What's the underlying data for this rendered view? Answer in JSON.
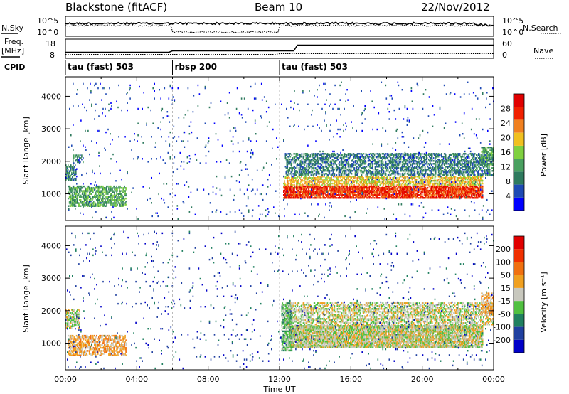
{
  "header": {
    "title": "Blackstone (fitACF)",
    "beam": "Beam 10",
    "date": "22/Nov/2012"
  },
  "summary_panel": {
    "nsky_label": "N.Sky",
    "nsearch_label": "N.Search",
    "nsky_ticks": [
      "10^5",
      "10^0"
    ],
    "nsearch_ticks": [
      "10^5",
      "10^0"
    ],
    "freq_label_1": "Freq.",
    "freq_label_2": "[MHz]",
    "freq_ticks": [
      "18",
      "8"
    ],
    "nave_label": "Nave",
    "nave_ticks": [
      "60",
      "0"
    ],
    "cpid_label": "CPID",
    "cpid_segments": [
      {
        "label": "tau (fast) 503",
        "start_hour": 0,
        "end_hour": 6
      },
      {
        "label": "rbsp 200",
        "start_hour": 6,
        "end_hour": 12
      },
      {
        "label": "tau (fast) 503",
        "start_hour": 12,
        "end_hour": 24
      }
    ]
  },
  "colors": {
    "power": [
      "#0000ff",
      "#1e4ab4",
      "#2e7a5e",
      "#4aa060",
      "#7fd040",
      "#f0c020",
      "#f08020",
      "#f02000",
      "#e00000"
    ],
    "velocity": [
      "#0000c8",
      "#2040a0",
      "#208060",
      "#50c040",
      "#c8c8be",
      "#f0a020",
      "#f07010",
      "#f03000",
      "#e00000"
    ]
  },
  "chart_data": [
    {
      "type": "heatmap",
      "name": "power",
      "xlabel": "",
      "ylabel": "Slant Range [km]",
      "xlim": [
        0,
        24
      ],
      "ylim": [
        180,
        4600
      ],
      "yticks": [
        1000,
        2000,
        3000,
        4000
      ],
      "colorbar_label": "Power [dB]",
      "colorbar_range": [
        0,
        32
      ],
      "colorbar_ticks": [
        "28",
        "24",
        "20",
        "16",
        "12",
        "8",
        "4"
      ],
      "blobs": [
        {
          "h0": 0.15,
          "h1": 3.4,
          "r0": 650,
          "r1": 1300,
          "level": 3,
          "density": 0.55
        },
        {
          "h0": 0.0,
          "h1": 0.6,
          "r0": 1450,
          "r1": 1950,
          "level": 2,
          "density": 0.55
        },
        {
          "h0": 0.4,
          "h1": 1.0,
          "r0": 2000,
          "r1": 2250,
          "level": 2,
          "density": 0.4
        },
        {
          "h0": 12.2,
          "h1": 23.4,
          "r0": 900,
          "r1": 1300,
          "level": 7,
          "density": 0.75
        },
        {
          "h0": 12.2,
          "h1": 23.4,
          "r0": 1300,
          "r1": 1600,
          "level": 5,
          "density": 0.5
        },
        {
          "h0": 12.3,
          "h1": 24.0,
          "r0": 1600,
          "r1": 2300,
          "level": 2,
          "density": 0.45
        },
        {
          "h0": 23.3,
          "h1": 24.0,
          "r0": 1900,
          "r1": 2500,
          "level": 3,
          "density": 0.5
        },
        {
          "h0": 0.0,
          "h1": 24.0,
          "r0": 250,
          "r1": 4500,
          "level": 1,
          "density": 0.015
        }
      ]
    },
    {
      "type": "heatmap",
      "name": "velocity",
      "xlabel": "Time UT",
      "ylabel": "Slant Range [km]",
      "xlim": [
        0,
        24
      ],
      "ylim": [
        180,
        4600
      ],
      "xticks": [
        "00:00",
        "04:00",
        "08:00",
        "12:00",
        "16:00",
        "20:00",
        "00:00"
      ],
      "yticks": [
        1000,
        2000,
        3000,
        4000
      ],
      "colorbar_label": "Velocity [m s⁻¹]",
      "colorbar_ticks": [
        "200",
        "100",
        "50",
        "15",
        "-15",
        "-50",
        "-100",
        "-200"
      ],
      "blobs": [
        {
          "h0": 0.15,
          "h1": 3.4,
          "r0": 650,
          "r1": 1300,
          "level": 5,
          "density": 0.55
        },
        {
          "h0": 0.0,
          "h1": 0.8,
          "r0": 1500,
          "r1": 2100,
          "level": 4,
          "density": 0.5
        },
        {
          "h0": 12.5,
          "h1": 23.4,
          "r0": 900,
          "r1": 1600,
          "level": 4,
          "density": 0.8
        },
        {
          "h0": 12.3,
          "h1": 24.0,
          "r0": 1600,
          "r1": 2300,
          "level": 4,
          "density": 0.45
        },
        {
          "h0": 12.1,
          "h1": 12.7,
          "r0": 800,
          "r1": 2300,
          "level": 3,
          "density": 0.6
        },
        {
          "h0": 23.3,
          "h1": 24.0,
          "r0": 1900,
          "r1": 2600,
          "level": 5,
          "density": 0.5
        },
        {
          "h0": 0.0,
          "h1": 24.0,
          "r0": 250,
          "r1": 4500,
          "level": 1,
          "density": 0.015
        }
      ]
    }
  ]
}
